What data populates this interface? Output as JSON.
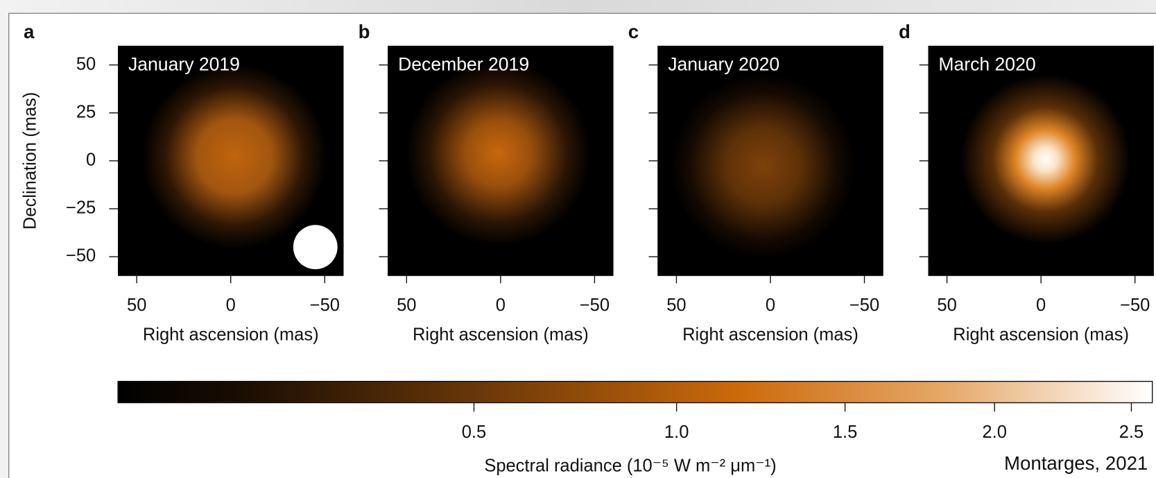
{
  "chart_data": [
    {
      "type": "image",
      "panel_label": "a",
      "title": "January 2019",
      "xlabel": "Right ascension (mas)",
      "ylabel": "Declination (mas)",
      "xlim": [
        60,
        -60
      ],
      "ylim": [
        -60,
        60
      ],
      "xticks": [
        50,
        0,
        {
          "value": -50,
          "label": "−50"
        }
      ],
      "yticks": [
        {
          "value": -50,
          "label": "−50"
        },
        {
          "value": -25,
          "label": "−25"
        },
        0,
        25,
        50
      ]
    },
    {
      "type": "image",
      "panel_label": "b",
      "title": "December 2019",
      "xlabel": "Right ascension (mas)",
      "xlim": [
        60,
        -60
      ],
      "ylim": [
        -60,
        60
      ],
      "xticks": [
        50,
        0,
        {
          "value": -50,
          "label": "−50"
        }
      ],
      "yticks": [
        -50,
        -25,
        0,
        25,
        50
      ]
    },
    {
      "type": "image",
      "panel_label": "c",
      "title": "January 2020",
      "xlabel": "Right ascension (mas)",
      "xlim": [
        60,
        -60
      ],
      "ylim": [
        -60,
        60
      ],
      "xticks": [
        50,
        0,
        {
          "value": -50,
          "label": "−50"
        }
      ],
      "yticks": [
        -50,
        -25,
        0,
        25,
        50
      ]
    },
    {
      "type": "image",
      "panel_label": "d",
      "title": "March 2020",
      "xlabel": "Right ascension (mas)",
      "xlim": [
        60,
        -60
      ],
      "ylim": [
        -60,
        60
      ],
      "xticks": [
        50,
        0,
        {
          "value": -50,
          "label": "−50"
        }
      ],
      "yticks": [
        -50,
        -25,
        0,
        25,
        50
      ]
    },
    {
      "type": "colorbar",
      "label": "Spectral radiance (10⁻⁵ W m⁻² μm⁻¹)",
      "credit": "Montarges, 2021",
      "scale": "power",
      "exponent": 0.65,
      "xlim": [
        0,
        2.58
      ],
      "xticks": [
        0.5,
        {
          "value": 1,
          "label": "1.0"
        },
        1.5,
        {
          "value": 2,
          "label": "2.0"
        },
        2.5
      ]
    }
  ]
}
